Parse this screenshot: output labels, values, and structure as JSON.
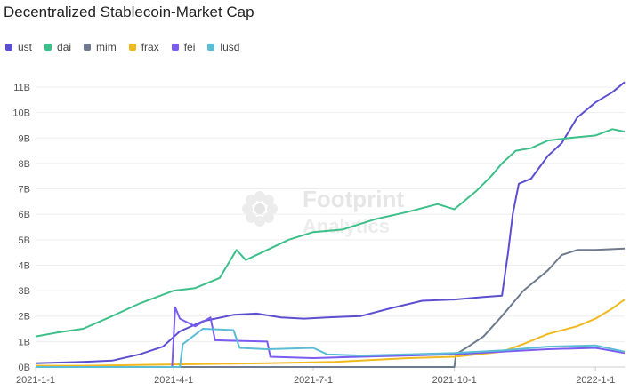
{
  "chart_data": {
    "type": "line",
    "title": "Decentralized Stablecoin-Market Cap",
    "xlabel": "",
    "ylabel": "",
    "legend_position": "top-left",
    "grid": true,
    "x_ticks": [
      "2021-1-1",
      "2021-4-1",
      "2021-7-1",
      "2021-10-1",
      "2022-1-1"
    ],
    "y_ticks": [
      "0B",
      "1B",
      "2B",
      "3B",
      "4B",
      "5B",
      "6B",
      "7B",
      "8B",
      "9B",
      "10B",
      "11B"
    ],
    "ylim": [
      0,
      11
    ],
    "xlim": [
      "2021-01-01",
      "2022-01-20"
    ],
    "watermark": [
      "Footprint",
      "Analytics"
    ],
    "series": [
      {
        "name": "ust",
        "color": "#5b4fcf",
        "points": [
          [
            "2021-01-01",
            0.15
          ],
          [
            "2021-02-01",
            0.2
          ],
          [
            "2021-02-20",
            0.25
          ],
          [
            "2021-03-10",
            0.5
          ],
          [
            "2021-03-25",
            0.8
          ],
          [
            "2021-04-05",
            1.4
          ],
          [
            "2021-04-20",
            1.8
          ],
          [
            "2021-05-10",
            2.05
          ],
          [
            "2021-05-25",
            2.1
          ],
          [
            "2021-06-10",
            1.95
          ],
          [
            "2021-06-25",
            1.9
          ],
          [
            "2021-07-10",
            1.95
          ],
          [
            "2021-08-01",
            2.0
          ],
          [
            "2021-08-20",
            2.3
          ],
          [
            "2021-09-10",
            2.6
          ],
          [
            "2021-10-01",
            2.65
          ],
          [
            "2021-10-20",
            2.75
          ],
          [
            "2021-11-01",
            2.8
          ],
          [
            "2021-11-05",
            4.5
          ],
          [
            "2021-11-08",
            6.0
          ],
          [
            "2021-11-12",
            7.2
          ],
          [
            "2021-11-20",
            7.4
          ],
          [
            "2021-12-01",
            8.3
          ],
          [
            "2021-12-10",
            8.8
          ],
          [
            "2021-12-20",
            9.8
          ],
          [
            "2022-01-01",
            10.4
          ],
          [
            "2022-01-12",
            10.8
          ],
          [
            "2022-01-20",
            11.2
          ]
        ]
      },
      {
        "name": "dai",
        "color": "#3dbf8a",
        "points": [
          [
            "2021-01-01",
            1.2
          ],
          [
            "2021-01-15",
            1.35
          ],
          [
            "2021-02-01",
            1.5
          ],
          [
            "2021-02-20",
            2.0
          ],
          [
            "2021-03-10",
            2.5
          ],
          [
            "2021-04-01",
            3.0
          ],
          [
            "2021-04-15",
            3.1
          ],
          [
            "2021-05-01",
            3.5
          ],
          [
            "2021-05-12",
            4.6
          ],
          [
            "2021-05-18",
            4.2
          ],
          [
            "2021-06-01",
            4.6
          ],
          [
            "2021-06-15",
            5.0
          ],
          [
            "2021-07-01",
            5.3
          ],
          [
            "2021-07-20",
            5.4
          ],
          [
            "2021-08-10",
            5.8
          ],
          [
            "2021-09-01",
            6.1
          ],
          [
            "2021-09-20",
            6.4
          ],
          [
            "2021-10-01",
            6.2
          ],
          [
            "2021-10-15",
            6.9
          ],
          [
            "2021-10-25",
            7.5
          ],
          [
            "2021-11-01",
            8.0
          ],
          [
            "2021-11-10",
            8.5
          ],
          [
            "2021-11-20",
            8.6
          ],
          [
            "2021-12-01",
            8.9
          ],
          [
            "2021-12-15",
            9.0
          ],
          [
            "2022-01-01",
            9.1
          ],
          [
            "2022-01-12",
            9.35
          ],
          [
            "2022-01-20",
            9.25
          ]
        ]
      },
      {
        "name": "mim",
        "color": "#6e7b8f",
        "points": [
          [
            "2021-01-01",
            0.0
          ],
          [
            "2021-10-01",
            0.0
          ],
          [
            "2021-10-02",
            0.5
          ],
          [
            "2021-10-10",
            0.8
          ],
          [
            "2021-10-20",
            1.2
          ],
          [
            "2021-11-01",
            2.0
          ],
          [
            "2021-11-15",
            3.0
          ],
          [
            "2021-12-01",
            3.8
          ],
          [
            "2021-12-10",
            4.4
          ],
          [
            "2021-12-20",
            4.6
          ],
          [
            "2022-01-01",
            4.6
          ],
          [
            "2022-01-20",
            4.65
          ]
        ]
      },
      {
        "name": "frax",
        "color": "#f0b91e",
        "points": [
          [
            "2021-01-01",
            0.05
          ],
          [
            "2021-02-01",
            0.05
          ],
          [
            "2021-04-01",
            0.1
          ],
          [
            "2021-06-01",
            0.15
          ],
          [
            "2021-07-15",
            0.2
          ],
          [
            "2021-09-01",
            0.35
          ],
          [
            "2021-10-01",
            0.4
          ],
          [
            "2021-11-01",
            0.6
          ],
          [
            "2021-11-15",
            0.9
          ],
          [
            "2021-12-01",
            1.3
          ],
          [
            "2021-12-20",
            1.6
          ],
          [
            "2022-01-01",
            1.9
          ],
          [
            "2022-01-12",
            2.3
          ],
          [
            "2022-01-20",
            2.65
          ]
        ]
      },
      {
        "name": "fei",
        "color": "#7a5cf0",
        "points": [
          [
            "2021-01-01",
            0.0
          ],
          [
            "2021-03-31",
            0.0
          ],
          [
            "2021-04-02",
            2.35
          ],
          [
            "2021-04-05",
            1.9
          ],
          [
            "2021-04-15",
            1.6
          ],
          [
            "2021-04-25",
            1.95
          ],
          [
            "2021-04-28",
            1.05
          ],
          [
            "2021-06-01",
            1.0
          ],
          [
            "2021-06-03",
            0.4
          ],
          [
            "2021-07-01",
            0.35
          ],
          [
            "2021-08-01",
            0.4
          ],
          [
            "2021-09-01",
            0.45
          ],
          [
            "2021-10-01",
            0.5
          ],
          [
            "2021-11-01",
            0.6
          ],
          [
            "2021-12-01",
            0.7
          ],
          [
            "2022-01-01",
            0.75
          ],
          [
            "2022-01-20",
            0.55
          ]
        ]
      },
      {
        "name": "lusd",
        "color": "#5bbcd6",
        "points": [
          [
            "2021-01-01",
            0.0
          ],
          [
            "2021-04-05",
            0.0
          ],
          [
            "2021-04-07",
            0.9
          ],
          [
            "2021-04-20",
            1.5
          ],
          [
            "2021-05-10",
            1.45
          ],
          [
            "2021-05-14",
            0.75
          ],
          [
            "2021-06-01",
            0.7
          ],
          [
            "2021-07-01",
            0.75
          ],
          [
            "2021-07-10",
            0.5
          ],
          [
            "2021-08-01",
            0.45
          ],
          [
            "2021-09-01",
            0.5
          ],
          [
            "2021-10-01",
            0.55
          ],
          [
            "2021-11-01",
            0.65
          ],
          [
            "2021-12-01",
            0.8
          ],
          [
            "2022-01-01",
            0.85
          ],
          [
            "2022-01-20",
            0.6
          ]
        ]
      }
    ]
  }
}
